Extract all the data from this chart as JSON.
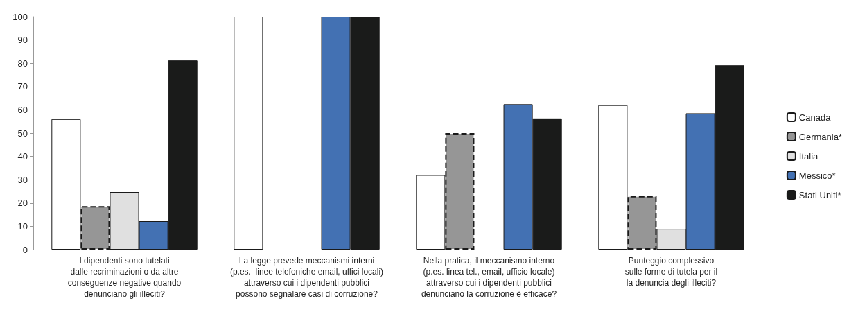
{
  "chart_data": {
    "type": "bar",
    "categories": [
      "I dipendenti sono tutelati\ndalle recriminazioni o da altre\nconseguenze negative quando\ndenunciano gli illeciti?",
      "La legge prevede meccanismi interni\n(p.es.  linee telefoniche email, uffici locali)\nattraverso cui i dipendenti pubblici\npossono segnalare casi di corruzione?",
      "Nella pratica, il meccanismo interno\n(p.es. linea tel., email, ufficio locale)\nattraverso cui i dipendenti pubblici\ndenunciano la corruzione è efficace?",
      "Punteggio complessivo\nsulle forme di tutela per il\nla denuncia degli illeciti?"
    ],
    "series": [
      {
        "name": "Canada",
        "color": "#ffffff",
        "values": [
          56,
          100,
          32,
          62
        ]
      },
      {
        "name": "Germania*",
        "color": "#969696",
        "line_style": "dashed",
        "values": [
          18.7,
          null,
          50,
          23
        ]
      },
      {
        "name": "Italia",
        "color": "#e0e0e0",
        "values": [
          24.7,
          null,
          null,
          8.9
        ]
      },
      {
        "name": "Messico*",
        "color": "#4371b3",
        "values": [
          12.2,
          100,
          62.4,
          58.5
        ]
      },
      {
        "name": "Stati Uniti*",
        "color": "#1a1b1a",
        "values": [
          81.2,
          100,
          56.3,
          79.1
        ]
      }
    ],
    "ylim": [
      0,
      100
    ],
    "yticks": [
      0,
      10,
      20,
      30,
      40,
      50,
      60,
      70,
      80,
      90,
      100
    ],
    "grid": false,
    "legend": "right"
  }
}
